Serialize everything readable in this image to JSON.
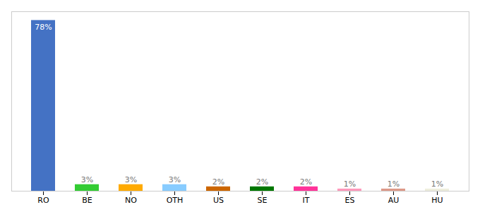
{
  "chart_data": {
    "type": "bar",
    "categories": [
      "RO",
      "BE",
      "NO",
      "OTH",
      "US",
      "SE",
      "IT",
      "ES",
      "AU",
      "HU"
    ],
    "values": [
      78,
      3,
      3,
      3,
      2,
      2,
      2,
      1,
      1,
      1
    ],
    "value_labels": [
      "78%",
      "3%",
      "3%",
      "3%",
      "2%",
      "2%",
      "2%",
      "1%",
      "1%",
      "1%"
    ],
    "colors": [
      "#4472c4",
      "#33cc33",
      "#ffaa00",
      "#88ccff",
      "#cc6600",
      "#007700",
      "#ff3399",
      "#ff99bb",
      "#dd9988",
      "#eeeedd"
    ],
    "ylim": [
      0,
      82
    ],
    "data_labels": true,
    "tick_labels": "x",
    "grid": false
  }
}
